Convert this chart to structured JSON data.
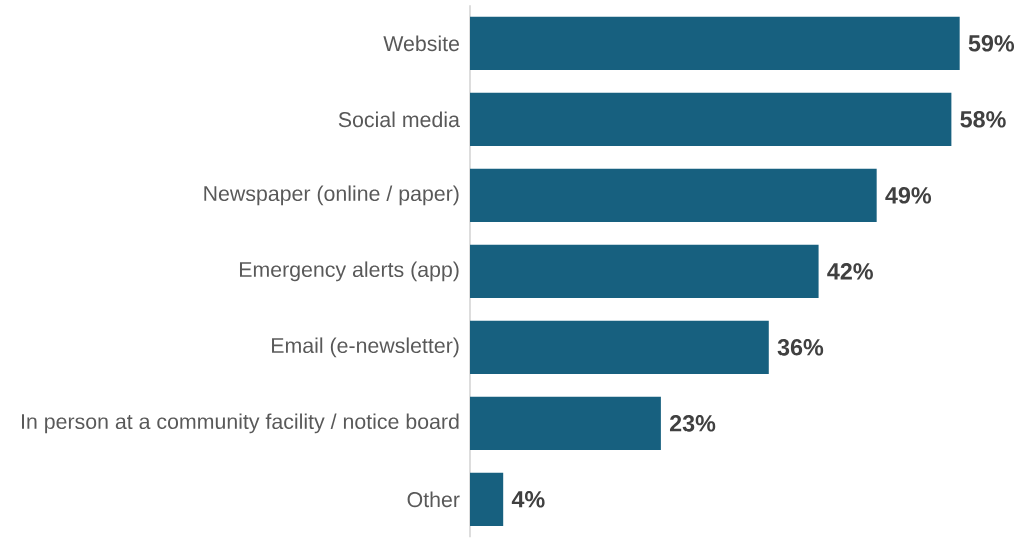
{
  "chart_data": {
    "type": "bar",
    "orientation": "horizontal",
    "categories": [
      "Website",
      "Social media",
      "Newspaper (online / paper)",
      "Emergency alerts (app)",
      "Email (e-newsletter)",
      "In person at a community facility / notice board",
      "Other"
    ],
    "values": [
      59,
      58,
      49,
      42,
      36,
      23,
      4
    ],
    "value_labels": [
      "59%",
      "58%",
      "49%",
      "42%",
      "36%",
      "23%",
      "4%"
    ],
    "color": "#17607f"
  }
}
